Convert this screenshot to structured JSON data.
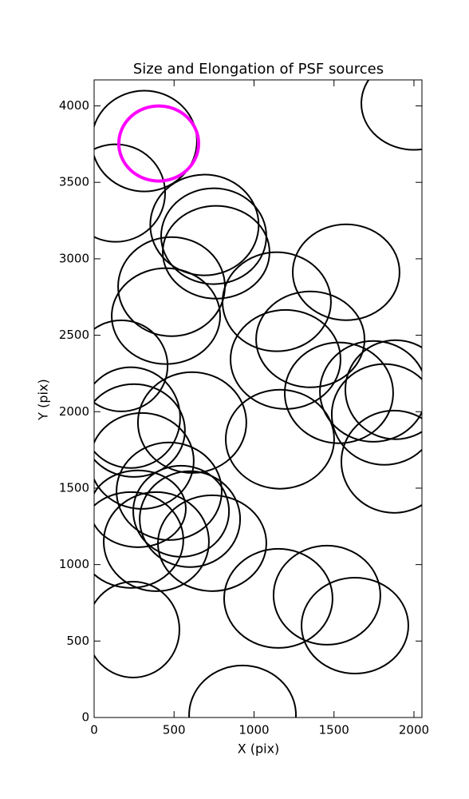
{
  "chart_data": {
    "type": "ellipse",
    "title": "Size and Elongation of PSF sources",
    "xlabel": "X (pix)",
    "ylabel": "Y (pix)",
    "xlim": [
      0,
      2050
    ],
    "ylim": [
      0,
      4170
    ],
    "xticks": [
      0,
      500,
      1000,
      1500,
      2000
    ],
    "yticks": [
      0,
      500,
      1000,
      1500,
      2000,
      2500,
      3000,
      3500,
      4000
    ],
    "series": [
      {
        "color": "#000000",
        "x": [
          314,
          135,
          2000,
          690,
          748,
          763,
          484,
          449,
          1142,
          1576,
          1352,
          1197,
          1531,
          1746,
          1885,
          1815,
          1875,
          1162,
          613,
          170,
          229,
          249,
          299,
          469,
          274,
          544,
          599,
          229,
          389,
          738,
          244,
          1152,
          1456,
          1631,
          928
        ],
        "y": [
          3770,
          3430,
          4016,
          3221,
          3148,
          3043,
          2818,
          2625,
          2719,
          2912,
          2473,
          2342,
          2123,
          2133,
          2144,
          1982,
          1673,
          1820,
          1929,
          2300,
          1961,
          1877,
          1678,
          1480,
          1365,
          1349,
          1297,
          1161,
          1150,
          1140,
          575,
          779,
          800,
          601,
          16
        ],
        "width": [
          658,
          618,
          658,
          678,
          658,
          668,
          668,
          678,
          678,
          668,
          678,
          688,
          678,
          668,
          628,
          658,
          658,
          678,
          678,
          579,
          618,
          638,
          648,
          658,
          599,
          599,
          628,
          658,
          658,
          678,
          579,
          678,
          668,
          668,
          668
        ],
        "height": [
          659,
          638,
          607,
          659,
          627,
          607,
          648,
          627,
          648,
          627,
          627,
          648,
          659,
          659,
          648,
          659,
          669,
          648,
          659,
          596,
          659,
          607,
          627,
          638,
          502,
          596,
          627,
          627,
          648,
          627,
          627,
          648,
          648,
          627,
          648
        ]
      },
      {
        "color": "#ff00ff",
        "x": [
          404
        ],
        "y": [
          3754
        ],
        "width": [
          499
        ],
        "height": [
          491
        ]
      }
    ]
  }
}
